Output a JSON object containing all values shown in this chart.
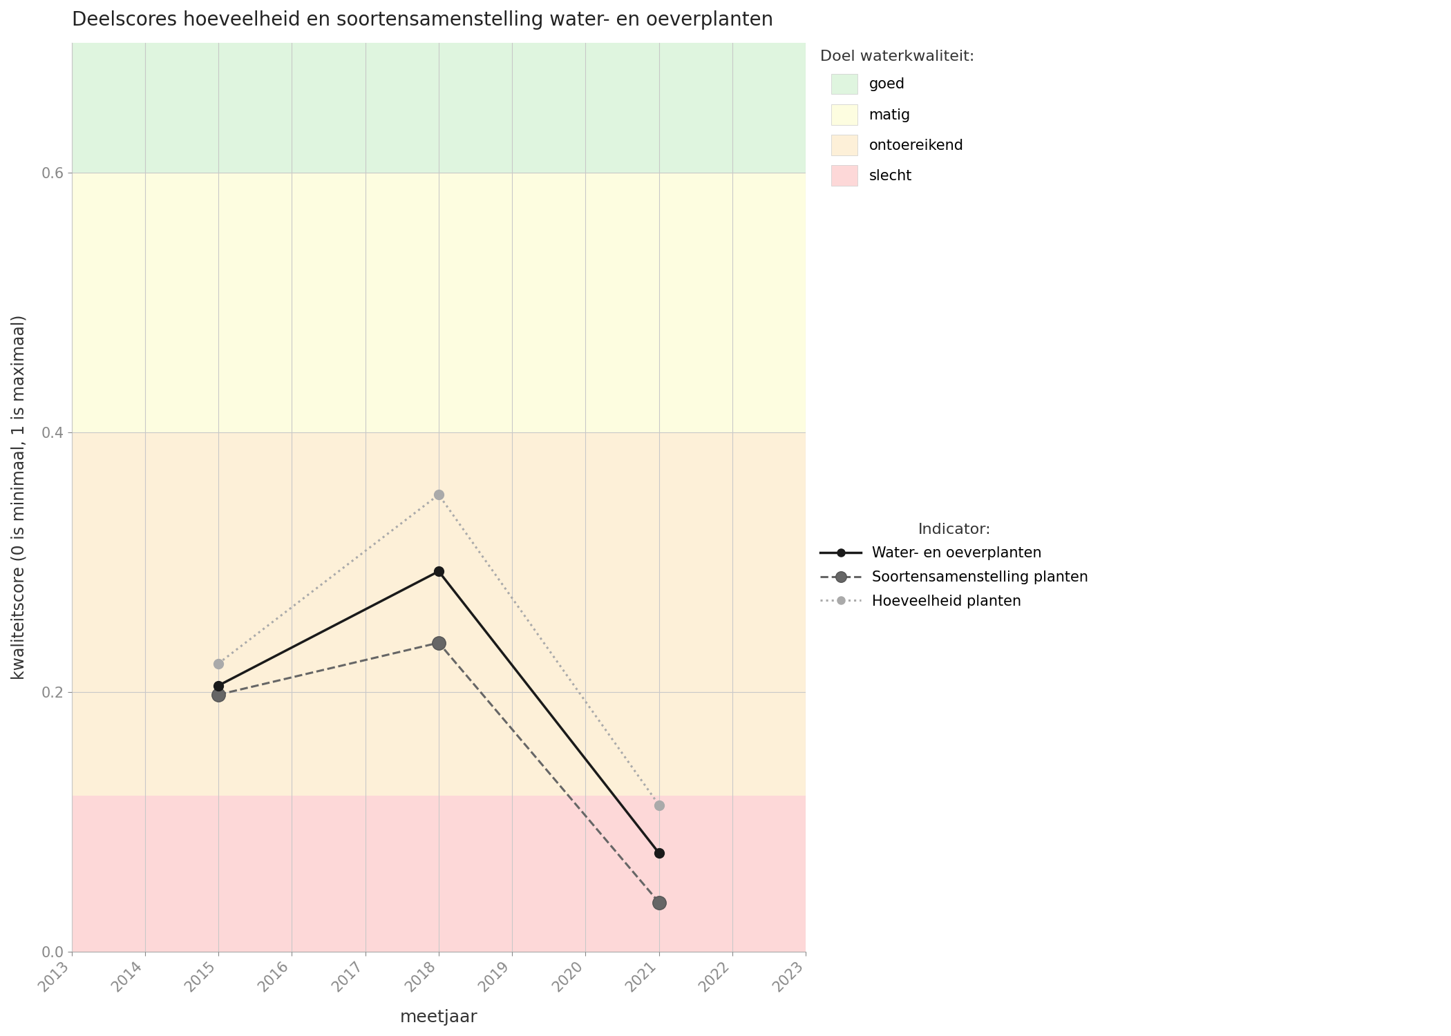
{
  "title": "Deelscores hoeveelheid en soortensamenstelling water- en oeverplanten",
  "xlabel": "meetjaar",
  "ylabel": "kwaliteitscore (0 is minimaal, 1 is maximaal)",
  "xlim": [
    2013,
    2023
  ],
  "ylim": [
    0.0,
    0.7
  ],
  "yticks": [
    0.0,
    0.2,
    0.4,
    0.6
  ],
  "xticks": [
    2013,
    2014,
    2015,
    2016,
    2017,
    2018,
    2019,
    2020,
    2021,
    2022,
    2023
  ],
  "background_zones": [
    {
      "ymin": 0.0,
      "ymax": 0.12,
      "color": "#fdd8d8",
      "label": "slecht"
    },
    {
      "ymin": 0.12,
      "ymax": 0.4,
      "color": "#fdf0d8",
      "label": "ontoereikend"
    },
    {
      "ymin": 0.4,
      "ymax": 0.6,
      "color": "#fdfde0",
      "label": "matig"
    },
    {
      "ymin": 0.6,
      "ymax": 0.7,
      "color": "#dff5df",
      "label": "goed"
    }
  ],
  "series": [
    {
      "label": "Water- en oeverplanten",
      "x": [
        2015,
        2018,
        2021
      ],
      "y": [
        0.205,
        0.293,
        0.076
      ],
      "color": "#1a1a1a",
      "linestyle": "solid",
      "linewidth": 2.5,
      "markersize": 10,
      "markeredgecolor": "#1a1a1a",
      "markerfacecolor": "#1a1a1a",
      "zorder": 5
    },
    {
      "label": "Soortensamenstelling planten",
      "x": [
        2015,
        2018,
        2021
      ],
      "y": [
        0.198,
        0.238,
        0.038
      ],
      "color": "#666666",
      "linestyle": "dashed",
      "linewidth": 2.2,
      "markersize": 14,
      "markeredgecolor": "#555555",
      "markerfacecolor": "#666666",
      "zorder": 4
    },
    {
      "label": "Hoeveelheid planten",
      "x": [
        2015,
        2018,
        2021
      ],
      "y": [
        0.222,
        0.352,
        0.113
      ],
      "color": "#aaaaaa",
      "linestyle": "dotted",
      "linewidth": 2.2,
      "markersize": 10,
      "markeredgecolor": "#aaaaaa",
      "markerfacecolor": "#aaaaaa",
      "zorder": 3
    }
  ],
  "legend_title_doel": "Doel waterkwaliteit:",
  "legend_title_indicator": "Indicator:",
  "background_color": "#ffffff",
  "grid_color": "#c8c8c8",
  "title_fontsize": 20,
  "label_fontsize": 18,
  "tick_fontsize": 15,
  "legend_fontsize": 15,
  "legend_title_fontsize": 16
}
